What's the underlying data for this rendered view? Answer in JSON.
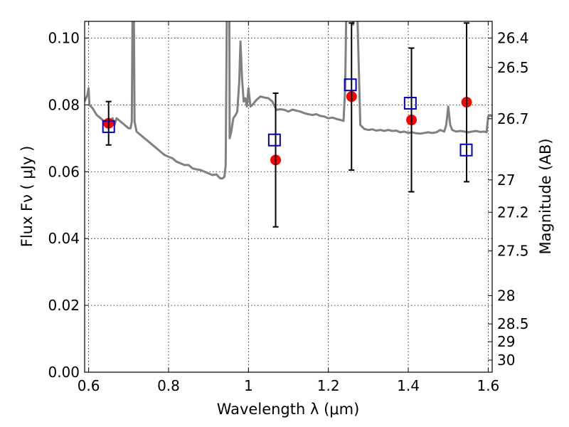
{
  "chart_data": {
    "type": "scatter",
    "xlabel": "Wavelength  λ (μm)",
    "ylabel": "Flux  Fν  ( μJy )",
    "y2label": "Magnitude (AB)",
    "xlim": [
      0.59,
      1.61
    ],
    "ylim": [
      0.0,
      0.105
    ],
    "x_ticks": [
      {
        "value": 0.6,
        "label": "0.6"
      },
      {
        "value": 0.8,
        "label": "0.8"
      },
      {
        "value": 1.0,
        "label": "1"
      },
      {
        "value": 1.2,
        "label": "1.2"
      },
      {
        "value": 1.4,
        "label": "1.4"
      },
      {
        "value": 1.6,
        "label": "1.6"
      }
    ],
    "y_ticks": [
      {
        "value": 0.0,
        "label": "0.00"
      },
      {
        "value": 0.02,
        "label": "0.02"
      },
      {
        "value": 0.04,
        "label": "0.04"
      },
      {
        "value": 0.06,
        "label": "0.06"
      },
      {
        "value": 0.08,
        "label": "0.08"
      },
      {
        "value": 0.1,
        "label": "0.10"
      }
    ],
    "y2_ticks": [
      {
        "value": 26.4,
        "label": "26.4"
      },
      {
        "value": 26.5,
        "label": "26.5"
      },
      {
        "value": 26.7,
        "label": "26.7"
      },
      {
        "value": 27.0,
        "label": "27"
      },
      {
        "value": 27.2,
        "label": "27.2"
      },
      {
        "value": 27.5,
        "label": "27.5"
      },
      {
        "value": 28.0,
        "label": "28"
      },
      {
        "value": 28.5,
        "label": "28.5"
      },
      {
        "value": 29.0,
        "label": "29"
      },
      {
        "value": 30.0,
        "label": "30"
      }
    ],
    "grid": true,
    "series": [
      {
        "kind": "line",
        "color": "#808080",
        "points": [
          [
            0.59,
            0.081
          ],
          [
            0.597,
            0.083
          ],
          [
            0.6,
            0.085
          ],
          [
            0.602,
            0.08
          ],
          [
            0.61,
            0.079
          ],
          [
            0.62,
            0.077
          ],
          [
            0.63,
            0.076
          ],
          [
            0.64,
            0.075
          ],
          [
            0.65,
            0.075
          ],
          [
            0.66,
            0.076
          ],
          [
            0.665,
            0.074
          ],
          [
            0.67,
            0.076
          ],
          [
            0.68,
            0.075
          ],
          [
            0.69,
            0.074
          ],
          [
            0.7,
            0.073
          ],
          [
            0.705,
            0.073
          ],
          [
            0.708,
            0.075
          ],
          [
            0.71,
            0.11
          ],
          [
            0.713,
            0.11
          ],
          [
            0.715,
            0.075
          ],
          [
            0.72,
            0.072
          ],
          [
            0.73,
            0.071
          ],
          [
            0.74,
            0.07
          ],
          [
            0.75,
            0.069
          ],
          [
            0.76,
            0.068
          ],
          [
            0.77,
            0.067
          ],
          [
            0.78,
            0.066
          ],
          [
            0.79,
            0.065
          ],
          [
            0.8,
            0.0645
          ],
          [
            0.81,
            0.064
          ],
          [
            0.82,
            0.063
          ],
          [
            0.83,
            0.0625
          ],
          [
            0.84,
            0.062
          ],
          [
            0.85,
            0.062
          ],
          [
            0.86,
            0.061
          ],
          [
            0.87,
            0.0607
          ],
          [
            0.88,
            0.0605
          ],
          [
            0.89,
            0.06
          ],
          [
            0.9,
            0.0595
          ],
          [
            0.91,
            0.059
          ],
          [
            0.92,
            0.0592
          ],
          [
            0.925,
            0.0585
          ],
          [
            0.93,
            0.058
          ],
          [
            0.935,
            0.058
          ],
          [
            0.94,
            0.0585
          ],
          [
            0.943,
            0.062
          ],
          [
            0.946,
            0.11
          ],
          [
            0.952,
            0.11
          ],
          [
            0.953,
            0.07
          ],
          [
            0.957,
            0.072
          ],
          [
            0.962,
            0.076
          ],
          [
            0.968,
            0.077
          ],
          [
            0.972,
            0.078
          ],
          [
            0.977,
            0.087
          ],
          [
            0.98,
            0.099
          ],
          [
            0.984,
            0.088
          ],
          [
            0.988,
            0.081
          ],
          [
            0.992,
            0.082
          ],
          [
            0.996,
            0.0795
          ],
          [
            1.0,
            0.085
          ],
          [
            1.005,
            0.0795
          ],
          [
            1.01,
            0.08
          ],
          [
            1.02,
            0.0815
          ],
          [
            1.03,
            0.0825
          ],
          [
            1.04,
            0.0822
          ],
          [
            1.05,
            0.082
          ],
          [
            1.06,
            0.081
          ],
          [
            1.07,
            0.0785
          ],
          [
            1.08,
            0.0787
          ],
          [
            1.09,
            0.0785
          ],
          [
            1.1,
            0.078
          ],
          [
            1.11,
            0.0786
          ],
          [
            1.12,
            0.0783
          ],
          [
            1.13,
            0.078
          ],
          [
            1.14,
            0.0775
          ],
          [
            1.15,
            0.0772
          ],
          [
            1.16,
            0.077
          ],
          [
            1.17,
            0.0772
          ],
          [
            1.18,
            0.0767
          ],
          [
            1.19,
            0.0765
          ],
          [
            1.2,
            0.076
          ],
          [
            1.21,
            0.0762
          ],
          [
            1.22,
            0.0758
          ],
          [
            1.23,
            0.0755
          ],
          [
            1.238,
            0.0752
          ],
          [
            1.242,
            0.085
          ],
          [
            1.245,
            0.11
          ],
          [
            1.258,
            0.11
          ],
          [
            1.262,
            0.104
          ],
          [
            1.268,
            0.11
          ],
          [
            1.272,
            0.11
          ],
          [
            1.28,
            0.074
          ],
          [
            1.29,
            0.0728
          ],
          [
            1.3,
            0.0725
          ],
          [
            1.31,
            0.0727
          ],
          [
            1.32,
            0.0723
          ],
          [
            1.33,
            0.0725
          ],
          [
            1.34,
            0.0722
          ],
          [
            1.35,
            0.0725
          ],
          [
            1.36,
            0.0722
          ],
          [
            1.37,
            0.0723
          ],
          [
            1.38,
            0.0718
          ],
          [
            1.39,
            0.072
          ],
          [
            1.4,
            0.0716
          ],
          [
            1.41,
            0.0718
          ],
          [
            1.42,
            0.0715
          ],
          [
            1.43,
            0.0714
          ],
          [
            1.44,
            0.0716
          ],
          [
            1.45,
            0.0718
          ],
          [
            1.46,
            0.0716
          ],
          [
            1.47,
            0.0718
          ],
          [
            1.48,
            0.0725
          ],
          [
            1.49,
            0.072
          ],
          [
            1.495,
            0.074
          ],
          [
            1.5,
            0.0795
          ],
          [
            1.505,
            0.074
          ],
          [
            1.51,
            0.0725
          ],
          [
            1.52,
            0.072
          ],
          [
            1.53,
            0.0722
          ],
          [
            1.54,
            0.072
          ],
          [
            1.55,
            0.0718
          ],
          [
            1.56,
            0.072
          ],
          [
            1.57,
            0.0722
          ],
          [
            1.58,
            0.0719
          ],
          [
            1.59,
            0.072
          ],
          [
            1.596,
            0.0718
          ],
          [
            1.6,
            0.0765
          ],
          [
            1.605,
            0.077
          ],
          [
            1.61,
            0.0765
          ]
        ]
      },
      {
        "kind": "points",
        "marker": "circle",
        "color": "#ff0000",
        "points": [
          [
            0.65,
            0.0745
          ],
          [
            1.068,
            0.0635
          ],
          [
            1.258,
            0.0825
          ],
          [
            1.408,
            0.0755
          ],
          [
            1.546,
            0.0808
          ]
        ]
      },
      {
        "kind": "points",
        "marker": "open-square",
        "color": "#0000bb",
        "points": [
          [
            0.65,
            0.0735
          ],
          [
            1.065,
            0.0695
          ],
          [
            1.255,
            0.086
          ],
          [
            1.405,
            0.0805
          ],
          [
            1.545,
            0.0665
          ]
        ]
      },
      {
        "kind": "errorbars",
        "color": "#000000",
        "bars": [
          {
            "x": 0.65,
            "low": 0.068,
            "high": 0.081
          },
          {
            "x": 1.068,
            "low": 0.0435,
            "high": 0.0835
          },
          {
            "x": 1.258,
            "low": 0.0605,
            "high": 0.1045
          },
          {
            "x": 1.408,
            "low": 0.054,
            "high": 0.097
          },
          {
            "x": 1.546,
            "low": 0.057,
            "high": 0.1045
          }
        ]
      }
    ]
  }
}
